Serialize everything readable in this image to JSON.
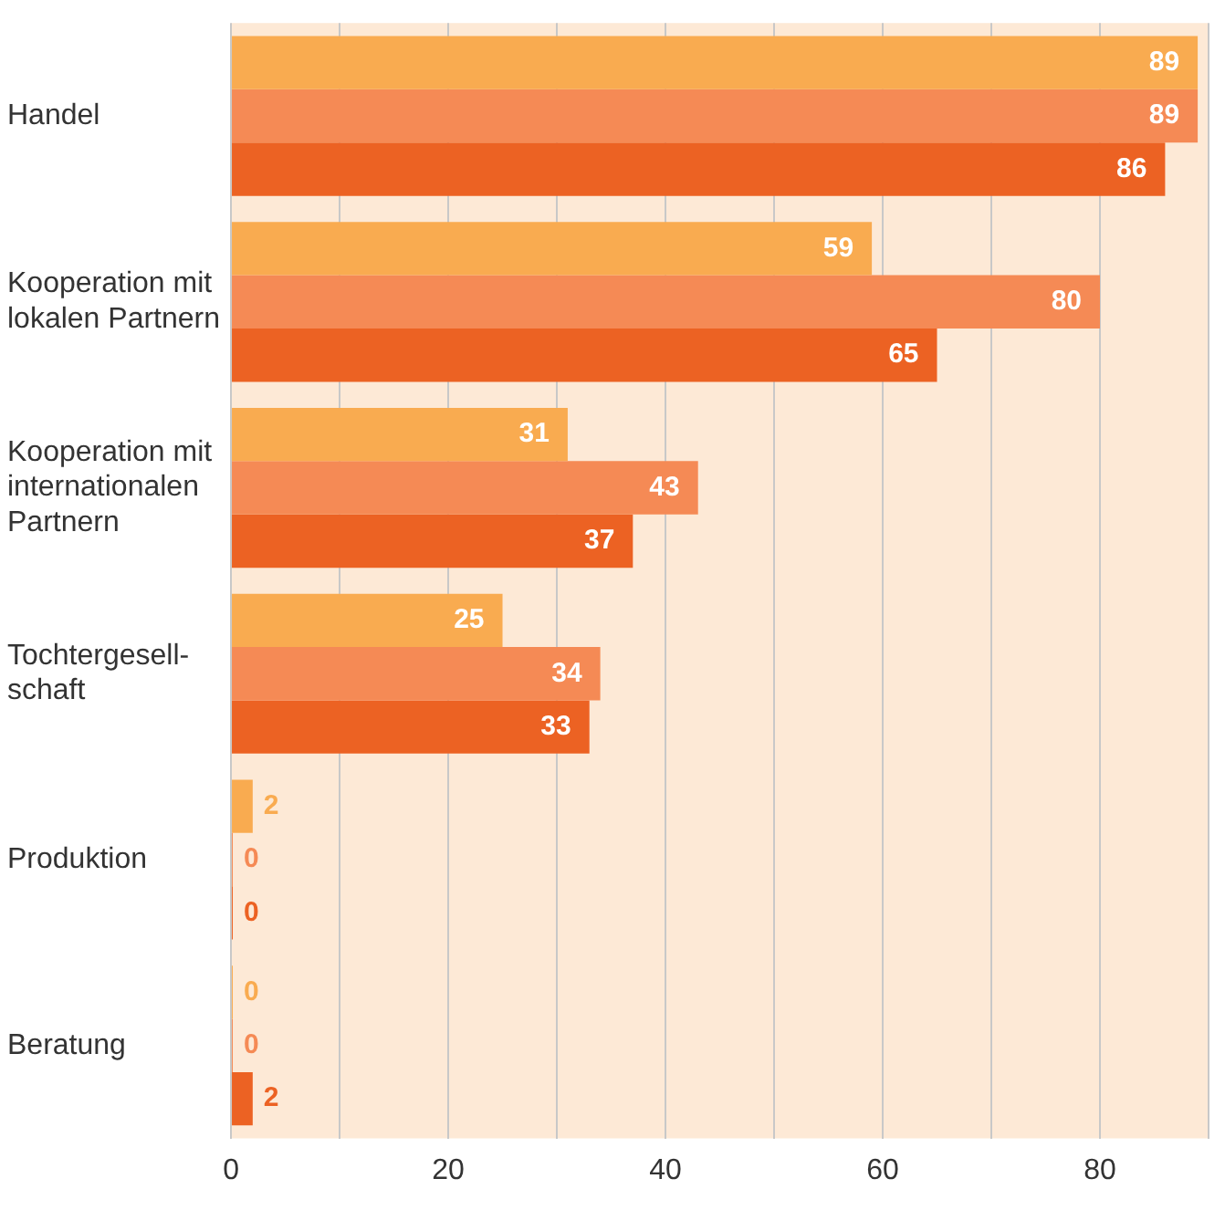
{
  "chart_data": {
    "type": "bar",
    "orientation": "horizontal",
    "categories": [
      "Handel",
      "Kooperation mit\nlokalen Partnern",
      "Kooperation mit\ninternationalen\nPartnern",
      "Tochtergesell-\nschaft",
      "Produktion",
      "Beratung"
    ],
    "series": [
      {
        "color": "#f9ab50",
        "values": [
          89,
          59,
          31,
          25,
          2,
          0
        ]
      },
      {
        "color": "#f58a55",
        "values": [
          89,
          80,
          43,
          34,
          0,
          0
        ]
      },
      {
        "color": "#ec6223",
        "values": [
          86,
          65,
          37,
          33,
          0,
          2
        ]
      }
    ],
    "xlim": [
      0,
      90
    ],
    "xticks": [
      0,
      {
        "value": 10,
        "label": null
      },
      20,
      {
        "value": 30,
        "label": null
      },
      40,
      {
        "value": 50,
        "label": null
      },
      60,
      {
        "value": 70,
        "label": null
      },
      80,
      {
        "value": 90,
        "label": null
      }
    ],
    "grid": "x",
    "legend": false,
    "data_labels": true
  }
}
